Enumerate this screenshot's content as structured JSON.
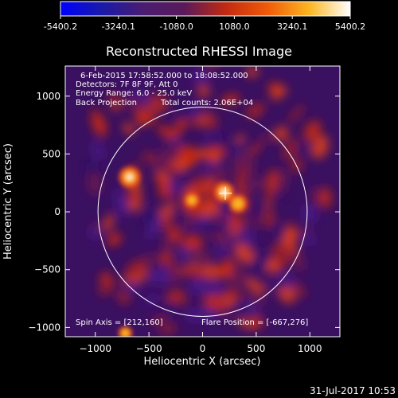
{
  "colorbar": {
    "ticks": [
      "-5400.2",
      "-3240.1",
      "-1080.0",
      "1080.0",
      "3240.1",
      "5400.2"
    ],
    "colors": [
      "#0000ff",
      "#1a1aa8",
      "#4a1c72",
      "#5a1a5a",
      "#c22a10",
      "#f05a0a",
      "#fbb520",
      "#ffffff"
    ]
  },
  "chart_data": {
    "type": "heatmap",
    "title": "Reconstructed RHESSI Image",
    "xlabel": "Heliocentric X (arcsec)",
    "ylabel": "Heliocentric Y (arcsec)",
    "xlim": [
      -1280,
      1280
    ],
    "ylim": [
      -1080,
      1260
    ],
    "x_ticks": [
      -1000,
      -500,
      0,
      500,
      1000
    ],
    "y_ticks": [
      -1000,
      -500,
      0,
      500,
      1000
    ],
    "x_tick_labels": [
      "−1000",
      "−500",
      "0",
      "500",
      "1000"
    ],
    "y_tick_labels": [
      "−1000",
      "−500",
      "0",
      "500",
      "1000"
    ],
    "value_range": [
      -5400.2,
      5400.2
    ],
    "solar_limb_radius": 975,
    "spin_axis": [
      212,
      160
    ],
    "flare_position": [
      -667,
      276
    ],
    "bright_sources": [
      {
        "x": -680,
        "y": 300,
        "value": 5200
      },
      {
        "x": 200,
        "y": 170,
        "value": 4800
      },
      {
        "x": 330,
        "y": 70,
        "value": 4200
      },
      {
        "x": -100,
        "y": 100,
        "value": 3000
      },
      {
        "x": -720,
        "y": -1050,
        "value": 2600
      }
    ],
    "annotations": {
      "time": "6-Feb-2015 17:58:52.000 to 18:08:52.000",
      "detectors": "Detectors: 7F 8F 9F, Att 0",
      "energy": "Energy Range: 6.0 - 25.0 keV",
      "method": "Back Projection",
      "counts": "Total counts: 2.06E+04",
      "spin_axis": "Spin Axis = [212,160]",
      "flare_position": "Flare Position = [-667,276]"
    }
  },
  "timestamp": "31-Jul-2017 10:53"
}
